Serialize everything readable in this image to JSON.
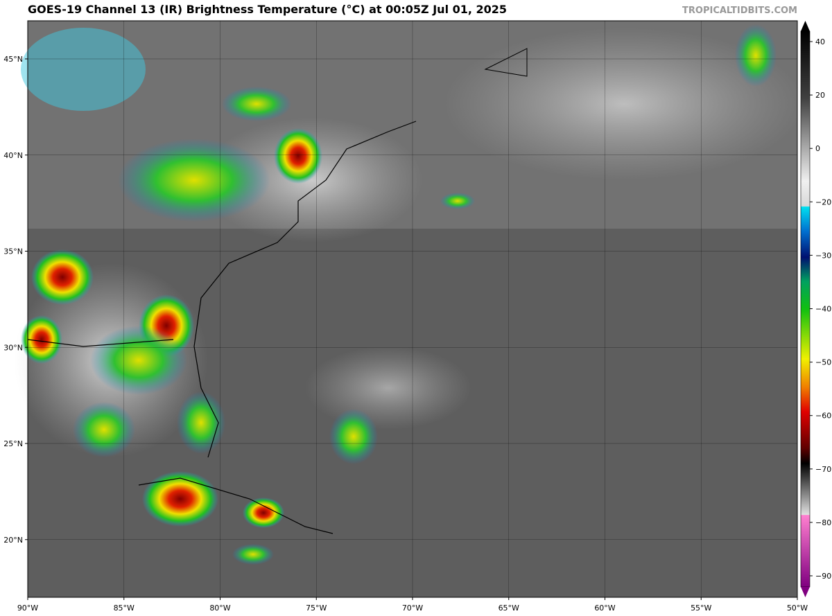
{
  "header": {
    "title": "GOES-19 Channel 13 (IR) Brightness Temperature (°C) at 00:05Z Jul 01, 2025",
    "credit": "TROPICALTIDBITS.COM"
  },
  "map": {
    "lon_labels": [
      "90°W",
      "85°W",
      "80°W",
      "75°W",
      "70°W",
      "65°W",
      "60°W",
      "55°W",
      "50°W"
    ],
    "lat_labels": [
      "45°N",
      "40°N",
      "35°N",
      "30°N",
      "25°N",
      "20°N"
    ]
  },
  "colorbar": {
    "ticks": [
      40,
      20,
      0,
      {
        "value": -20,
        "label": "−20"
      },
      {
        "value": -30,
        "label": "−30"
      },
      {
        "value": -40,
        "label": "−40"
      },
      {
        "value": -50,
        "label": "−50"
      },
      {
        "value": -60,
        "label": "−60"
      },
      {
        "value": -70,
        "label": "−70"
      },
      {
        "value": -80,
        "label": "−80"
      },
      {
        "value": -90,
        "label": "−90"
      }
    ]
  }
}
